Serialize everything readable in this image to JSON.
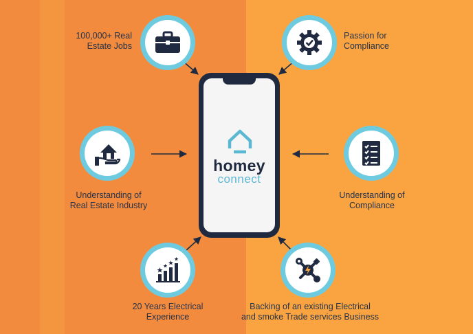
{
  "brand": {
    "line1": "homey",
    "line2": "connect",
    "dark_color": "#1f2a40",
    "accent_color": "#5bb8d2"
  },
  "colors": {
    "background_left": "#F28B3D",
    "background_right": "#F9A441",
    "circle_ring": "#6ECBDF",
    "text": "#27324a"
  },
  "features": [
    {
      "icon": "briefcase-icon",
      "line1": "100,000+ Real",
      "line2": "Estate Jobs"
    },
    {
      "icon": "gear-check-icon",
      "line1": "Passion for",
      "line2": "Compliance"
    },
    {
      "icon": "house-in-hand-icon",
      "line1": "Understanding of",
      "line2": "Real Estate Industry"
    },
    {
      "icon": "checklist-icon",
      "line1": "Understanding of",
      "line2": "Compliance"
    },
    {
      "icon": "growth-chart-icon",
      "line1": "20 Years Electrical",
      "line2": "Experience"
    },
    {
      "icon": "electrical-tools-icon",
      "line1": "Backing of an existing Electrical",
      "line2": "and smoke Trade services Business"
    }
  ]
}
